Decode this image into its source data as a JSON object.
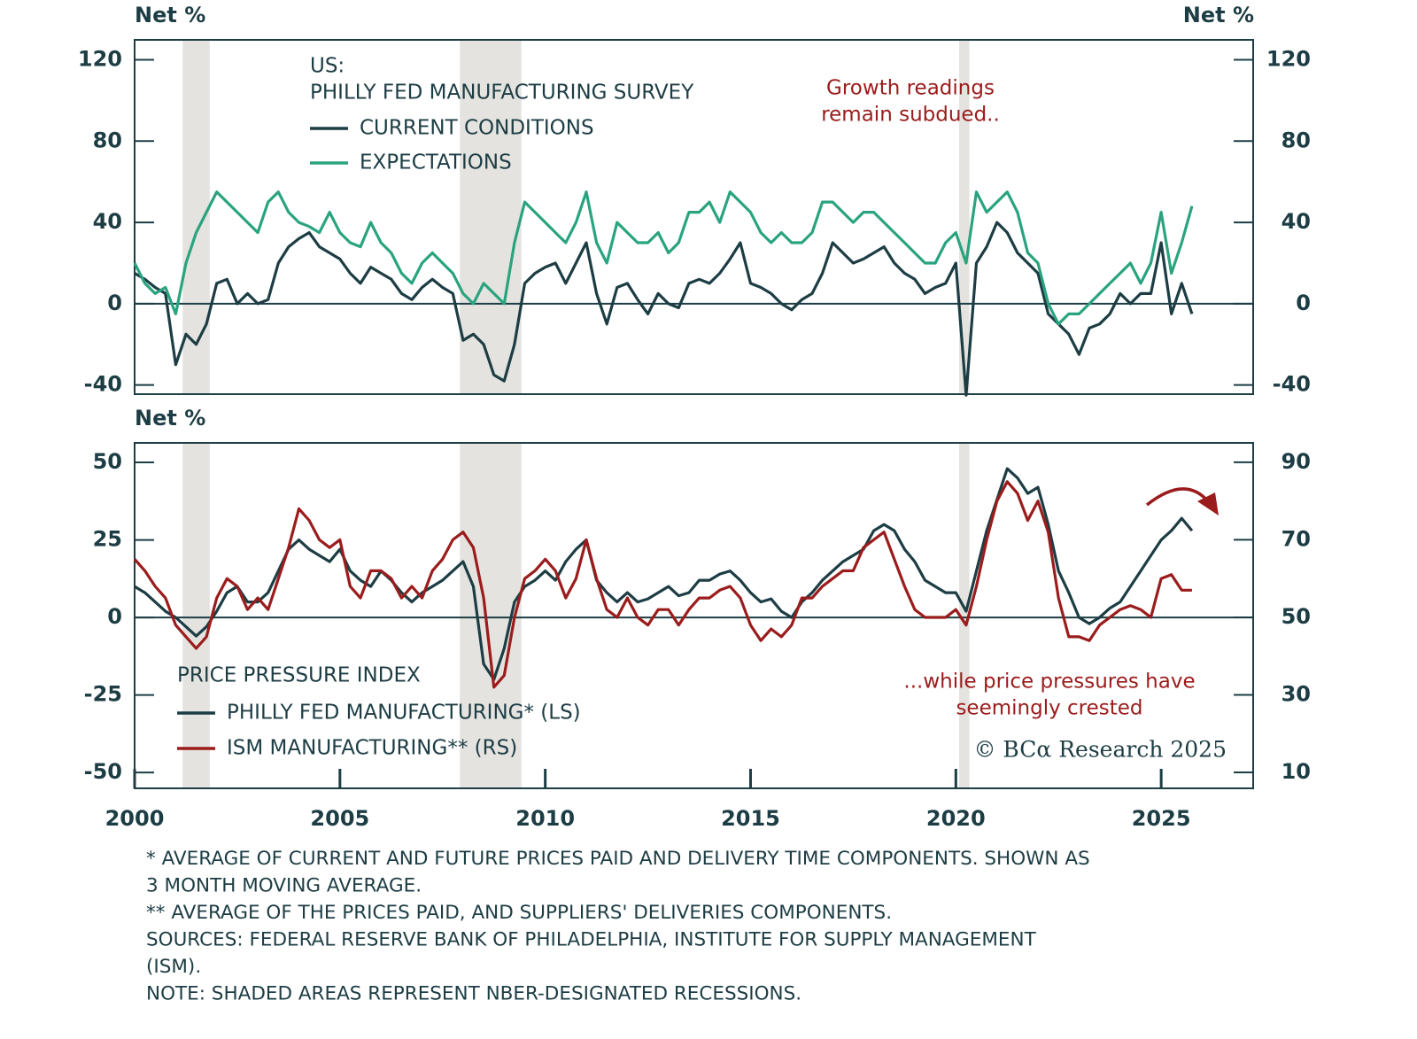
{
  "chart_data": [
    {
      "type": "line",
      "ylabel": "Net %",
      "y2label": "Net %",
      "legend_title": [
        "US:",
        "PHILLY FED MANUFACTURING SURVEY"
      ],
      "annotation": [
        "Growth readings",
        "remain subdued.."
      ],
      "xlim": [
        2000,
        2027.24
      ],
      "ylim": [
        -44.5,
        129.8
      ],
      "yticks": [
        -40,
        0,
        40,
        80,
        120
      ],
      "y2lim": [
        -44.5,
        129.8
      ],
      "y2ticks": [
        -40,
        0,
        40,
        80,
        120
      ],
      "recessions": [
        [
          2001.17,
          2001.83
        ],
        [
          2007.92,
          2009.42
        ],
        [
          2020.08,
          2020.33
        ]
      ],
      "recession_color": "#e4e3df",
      "x": [
        2000,
        2000.25,
        2000.5,
        2000.75,
        2001,
        2001.25,
        2001.5,
        2001.75,
        2002,
        2002.25,
        2002.5,
        2002.75,
        2003,
        2003.25,
        2003.5,
        2003.75,
        2004,
        2004.25,
        2004.5,
        2004.75,
        2005,
        2005.25,
        2005.5,
        2005.75,
        2006,
        2006.25,
        2006.5,
        2006.75,
        2007,
        2007.25,
        2007.5,
        2007.75,
        2008,
        2008.25,
        2008.5,
        2008.75,
        2009,
        2009.25,
        2009.5,
        2009.75,
        2010,
        2010.25,
        2010.5,
        2010.75,
        2011,
        2011.25,
        2011.5,
        2011.75,
        2012,
        2012.25,
        2012.5,
        2012.75,
        2013,
        2013.25,
        2013.5,
        2013.75,
        2014,
        2014.25,
        2014.5,
        2014.75,
        2015,
        2015.25,
        2015.5,
        2015.75,
        2016,
        2016.25,
        2016.5,
        2016.75,
        2017,
        2017.25,
        2017.5,
        2017.75,
        2018,
        2018.25,
        2018.5,
        2018.75,
        2019,
        2019.25,
        2019.5,
        2019.75,
        2020,
        2020.25,
        2020.5,
        2020.75,
        2021,
        2021.25,
        2021.5,
        2021.75,
        2022,
        2022.25,
        2022.5,
        2022.75,
        2023,
        2023.25,
        2023.5,
        2023.75,
        2024,
        2024.25,
        2024.5,
        2024.75,
        2025,
        2025.25,
        2025.5,
        2025.75
      ],
      "series": [
        {
          "name": "CURRENT CONDITIONS",
          "color": "#1d3d44",
          "values": [
            15,
            12,
            8,
            5,
            -30,
            -15,
            -20,
            -10,
            10,
            12,
            0,
            5,
            0,
            2,
            20,
            28,
            32,
            35,
            28,
            25,
            22,
            15,
            10,
            18,
            15,
            12,
            5,
            2,
            8,
            12,
            8,
            5,
            -18,
            -15,
            -20,
            -35,
            -38,
            -20,
            10,
            15,
            18,
            20,
            10,
            20,
            30,
            5,
            -10,
            8,
            10,
            2,
            -5,
            5,
            0,
            -2,
            10,
            12,
            10,
            15,
            22,
            30,
            10,
            8,
            5,
            0,
            -3,
            2,
            5,
            15,
            30,
            25,
            20,
            22,
            25,
            28,
            20,
            15,
            12,
            5,
            8,
            10,
            20,
            -45,
            20,
            28,
            40,
            35,
            25,
            20,
            15,
            -5,
            -10,
            -15,
            -25,
            -12,
            -10,
            -5,
            5,
            0,
            5,
            5,
            30,
            -5,
            10,
            -5
          ]
        },
        {
          "name": "EXPECTATIONS",
          "color": "#2aa37f",
          "values": [
            20,
            10,
            5,
            8,
            -5,
            20,
            35,
            45,
            55,
            50,
            45,
            40,
            35,
            50,
            55,
            45,
            40,
            38,
            35,
            45,
            35,
            30,
            28,
            40,
            30,
            25,
            15,
            10,
            20,
            25,
            20,
            15,
            5,
            0,
            10,
            5,
            0,
            30,
            50,
            45,
            40,
            35,
            30,
            40,
            55,
            30,
            20,
            40,
            35,
            30,
            30,
            35,
            25,
            30,
            45,
            45,
            50,
            40,
            55,
            50,
            45,
            35,
            30,
            35,
            30,
            30,
            35,
            50,
            50,
            45,
            40,
            45,
            45,
            40,
            35,
            30,
            25,
            20,
            20,
            30,
            35,
            20,
            55,
            45,
            50,
            55,
            45,
            25,
            20,
            0,
            -10,
            -5,
            -5,
            0,
            5,
            10,
            15,
            20,
            10,
            20,
            45,
            15,
            30,
            48
          ]
        }
      ]
    },
    {
      "type": "line",
      "ylabel": "Net %",
      "legend_title": "PRICE PRESSURE INDEX",
      "annotation": [
        "...while price pressures have",
        "seemingly crested"
      ],
      "xlim": [
        2000,
        2027.24
      ],
      "xticks": [
        2000,
        2005,
        2010,
        2015,
        2020,
        2025
      ],
      "ylim": [
        -55.1,
        56.3
      ],
      "yticks": [
        -50,
        -25,
        0,
        25,
        50
      ],
      "y2lim": [
        5.9,
        95.0
      ],
      "y2ticks": [
        10,
        30,
        50,
        70,
        90
      ],
      "recessions": [
        [
          2001.17,
          2001.83
        ],
        [
          2007.92,
          2009.42
        ],
        [
          2020.08,
          2020.33
        ]
      ],
      "recession_color": "#e4e3df",
      "x": [
        2000,
        2000.25,
        2000.5,
        2000.75,
        2001,
        2001.25,
        2001.5,
        2001.75,
        2002,
        2002.25,
        2002.5,
        2002.75,
        2003,
        2003.25,
        2003.5,
        2003.75,
        2004,
        2004.25,
        2004.5,
        2004.75,
        2005,
        2005.25,
        2005.5,
        2005.75,
        2006,
        2006.25,
        2006.5,
        2006.75,
        2007,
        2007.25,
        2007.5,
        2007.75,
        2008,
        2008.25,
        2008.5,
        2008.75,
        2009,
        2009.25,
        2009.5,
        2009.75,
        2010,
        2010.25,
        2010.5,
        2010.75,
        2011,
        2011.25,
        2011.5,
        2011.75,
        2012,
        2012.25,
        2012.5,
        2012.75,
        2013,
        2013.25,
        2013.5,
        2013.75,
        2014,
        2014.25,
        2014.5,
        2014.75,
        2015,
        2015.25,
        2015.5,
        2015.75,
        2016,
        2016.25,
        2016.5,
        2016.75,
        2017,
        2017.25,
        2017.5,
        2017.75,
        2018,
        2018.25,
        2018.5,
        2018.75,
        2019,
        2019.25,
        2019.5,
        2019.75,
        2020,
        2020.25,
        2020.5,
        2020.75,
        2021,
        2021.25,
        2021.5,
        2021.75,
        2022,
        2022.25,
        2022.5,
        2022.75,
        2023,
        2023.25,
        2023.5,
        2023.75,
        2024,
        2024.25,
        2024.5,
        2024.75,
        2025,
        2025.25,
        2025.5,
        2025.75
      ],
      "series": [
        {
          "name": "PHILLY FED MANUFACTURING* (LS)",
          "color": "#1d3d44",
          "values": [
            10,
            8,
            5,
            2,
            0,
            -3,
            -6,
            -3,
            2,
            8,
            10,
            5,
            5,
            8,
            15,
            22,
            25,
            22,
            20,
            18,
            22,
            15,
            12,
            10,
            15,
            12,
            8,
            5,
            8,
            10,
            12,
            15,
            18,
            10,
            -15,
            -20,
            -10,
            5,
            10,
            12,
            15,
            12,
            18,
            22,
            25,
            12,
            8,
            5,
            8,
            5,
            6,
            8,
            10,
            7,
            8,
            12,
            12,
            14,
            15,
            12,
            8,
            5,
            6,
            2,
            0,
            5,
            8,
            12,
            15,
            18,
            20,
            22,
            28,
            30,
            28,
            22,
            18,
            12,
            10,
            8,
            8,
            2,
            15,
            28,
            38,
            48,
            45,
            40,
            42,
            30,
            15,
            8,
            0,
            -2,
            0,
            3,
            5,
            10,
            15,
            20,
            25,
            28,
            32,
            28
          ]
        },
        {
          "name": "ISM MANUFACTURING** (RS)",
          "color": "#9b1c1c",
          "axis": "y2",
          "values": [
            65,
            62,
            58,
            55,
            48,
            45,
            42,
            45,
            55,
            60,
            58,
            52,
            55,
            52,
            60,
            68,
            78,
            75,
            70,
            68,
            70,
            58,
            55,
            62,
            62,
            60,
            55,
            58,
            55,
            62,
            65,
            70,
            72,
            68,
            55,
            32,
            35,
            50,
            60,
            62,
            65,
            62,
            55,
            60,
            70,
            60,
            52,
            50,
            55,
            50,
            48,
            52,
            52,
            48,
            52,
            55,
            55,
            57,
            58,
            55,
            48,
            44,
            47,
            45,
            48,
            55,
            55,
            58,
            60,
            62,
            62,
            68,
            70,
            72,
            65,
            58,
            52,
            50,
            50,
            50,
            52,
            48,
            58,
            70,
            80,
            85,
            82,
            75,
            80,
            72,
            55,
            45,
            45,
            44,
            48,
            50,
            52,
            53,
            52,
            50,
            60,
            61,
            57,
            57
          ]
        }
      ]
    }
  ],
  "source_credit": "© BCα Research 2025",
  "footnotes": [
    "* AVERAGE OF CURRENT AND FUTURE PRICES PAID AND DELIVERY TIME COMPONENTS. SHOWN AS",
    "3 MONTH MOVING AVERAGE.",
    "** AVERAGE OF THE PRICES PAID, AND SUPPLIERS' DELIVERIES COMPONENTS.",
    "SOURCES: FEDERAL RESERVE BANK OF PHILADELPHIA, INSTITUTE FOR SUPPLY MANAGEMENT",
    "(ISM).",
    "NOTE: SHADED AREAS REPRESENT NBER-DESIGNATED RECESSIONS."
  ]
}
